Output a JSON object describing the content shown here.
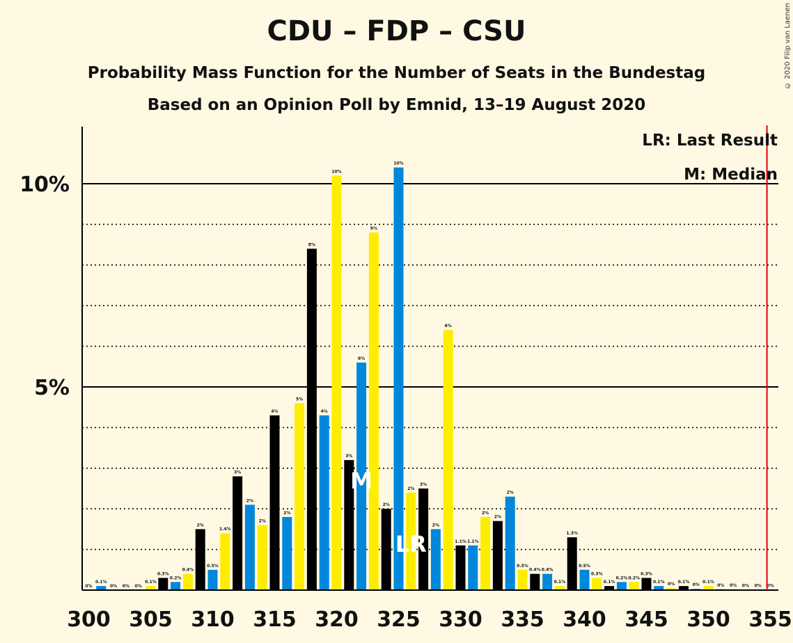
{
  "header": {
    "title": "CDU – FDP – CSU",
    "subtitle": "Probability Mass Function for the Number of Seats in the Bundestag",
    "subtitle2": "Based on an Opinion Poll by Emnid, 13–19 August 2020",
    "copyright": "© 2020 Filip van Laenen"
  },
  "legend": {
    "lr": "LR: Last Result",
    "m": "M: Median",
    "placement": "top-right"
  },
  "colors": {
    "background": "#FFF9E3",
    "black": "#000000",
    "blue": "#0087DC",
    "yellow": "#FFED00",
    "last_result_line": "#E3000F"
  },
  "chart_data": {
    "type": "bar",
    "x": [
      300,
      301,
      302,
      303,
      304,
      305,
      306,
      307,
      308,
      309,
      310,
      311,
      312,
      313,
      314,
      315,
      316,
      317,
      318,
      319,
      320,
      321,
      322,
      323,
      324,
      325,
      326,
      327,
      328,
      329,
      330,
      331,
      332,
      333,
      334,
      335,
      336,
      337,
      338,
      339,
      340,
      341,
      342,
      343,
      344,
      345,
      346,
      347,
      348,
      349,
      350,
      351,
      352,
      353,
      354,
      355
    ],
    "values": [
      0,
      0.1,
      0,
      0,
      0,
      0.1,
      0.3,
      0.2,
      0.4,
      1.5,
      0.5,
      1.4,
      2.8,
      2.1,
      1.6,
      4.3,
      1.8,
      4.6,
      8.4,
      4.3,
      10.2,
      3.2,
      5.6,
      8.8,
      2.0,
      10.4,
      2.4,
      2.5,
      1.5,
      6.4,
      1.1,
      1.1,
      1.8,
      1.7,
      2.3,
      0.5,
      0.4,
      0.4,
      0.1,
      1.3,
      0.5,
      0.3,
      0.1,
      0.2,
      0.2,
      0.3,
      0.1,
      0.05,
      0.1,
      0.03,
      0.1,
      0.02,
      0.02,
      0.01,
      0.01,
      0.01
    ],
    "labels": [
      "0%",
      "0.1%",
      "0%",
      "0%",
      "0%",
      "0.1%",
      "0.3%",
      "0.2%",
      "0.4%",
      "2%",
      "0.5%",
      "1.4%",
      "3%",
      "2%",
      "2%",
      "4%",
      "2%",
      "5%",
      "8%",
      "4%",
      "10%",
      "3%",
      "6%",
      "9%",
      "2%",
      "10%",
      "2%",
      "3%",
      "2%",
      "6%",
      "1.1%",
      "1.1%",
      "2%",
      "2%",
      "2%",
      "0.5%",
      "0.4%",
      "0.4%",
      "0.1%",
      "1.3%",
      "0.5%",
      "0.3%",
      "0.1%",
      "0.2%",
      "0.2%",
      "0.3%",
      "0.1%",
      "0%",
      "0.1%",
      "0%",
      "0.1%",
      "0%",
      "0%",
      "0%",
      "0%",
      "0%"
    ],
    "color_cycle": [
      "black",
      "blue",
      "yellow"
    ],
    "xticks": [
      300,
      305,
      310,
      315,
      320,
      325,
      330,
      335,
      340,
      345,
      350,
      355
    ],
    "xtick_labels": [
      "300",
      "305",
      "310",
      "315",
      "320",
      "325",
      "330",
      "335",
      "340",
      "345",
      "350",
      "355"
    ],
    "yticks_major": [
      5,
      10
    ],
    "ytick_labels": [
      "5%",
      "10%"
    ],
    "yticks_minor": [
      1,
      2,
      3,
      4,
      6,
      7,
      8,
      9
    ],
    "ylim": [
      0,
      11.4
    ],
    "xlim": [
      299.5,
      355.5
    ],
    "median": 322,
    "median_label": "M",
    "last_result": 326,
    "last_result_label": "LR",
    "red_line_x": 354.5
  }
}
